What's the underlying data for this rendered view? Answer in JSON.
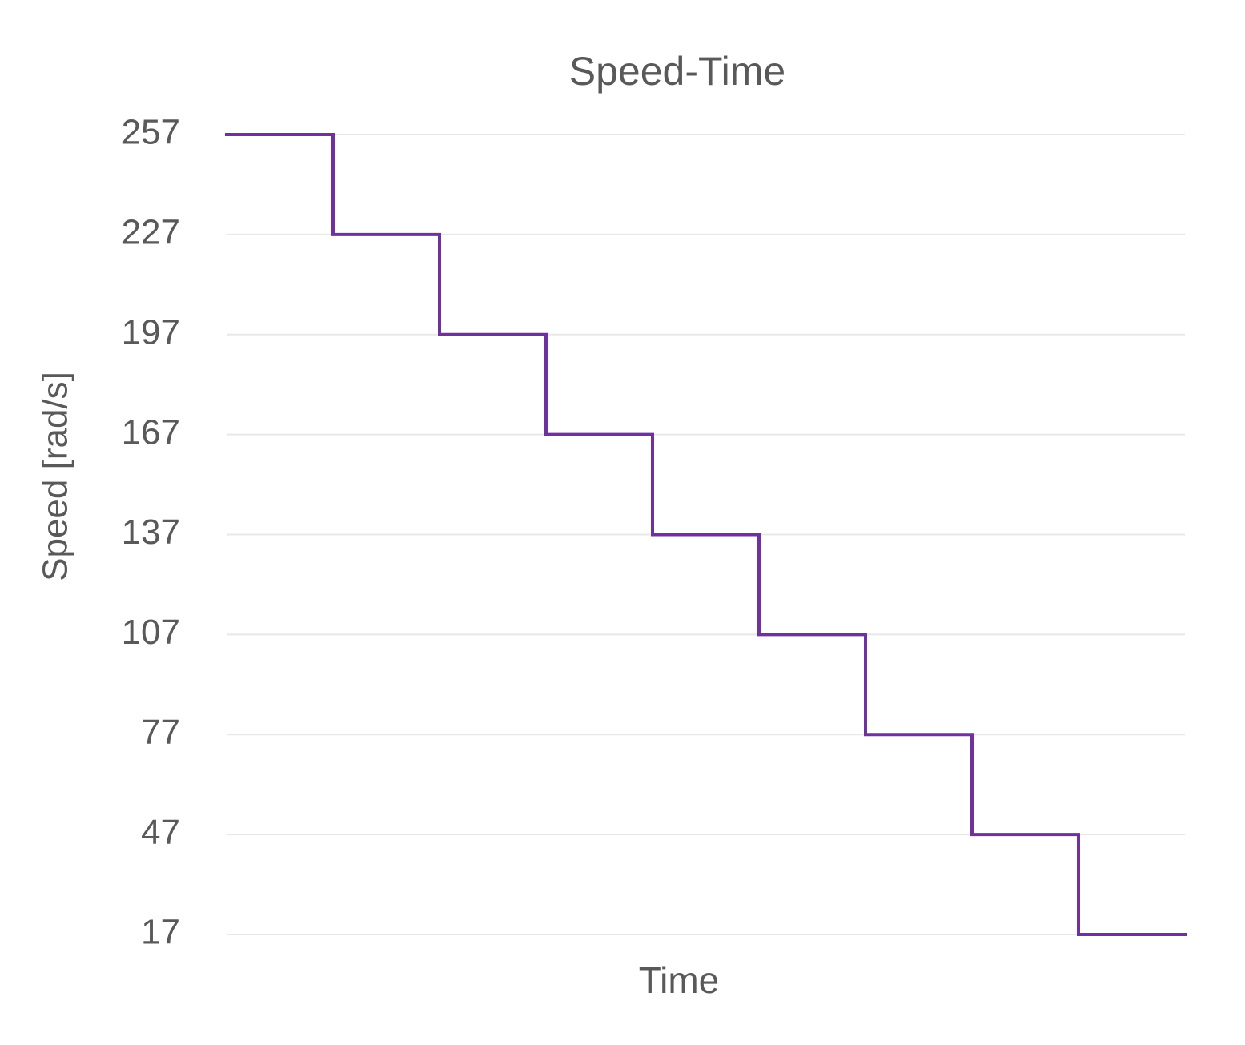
{
  "chart_data": {
    "type": "step",
    "title": "Speed-Time",
    "x_label": "Time",
    "y_label": "Speed [rad/s]",
    "values": [
      257,
      227,
      197,
      167,
      137,
      107,
      77,
      47,
      17
    ],
    "color": "#7030a0",
    "ylim": [
      17,
      257
    ],
    "yticks": [
      17,
      47,
      77,
      107,
      137,
      167,
      197,
      227,
      257
    ],
    "grid": true
  }
}
